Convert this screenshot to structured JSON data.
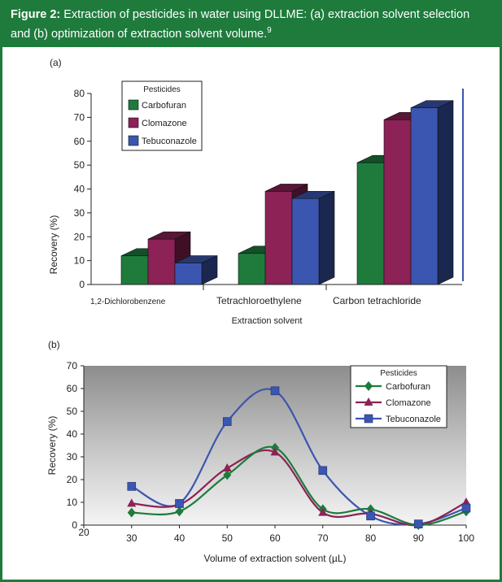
{
  "figure": {
    "label": "Figure 2:",
    "caption": "Extraction of pesticides in water using DLLME: (a) extraction solvent selection and (b) optimization of extraction solvent volume.",
    "ref": "9"
  },
  "colors": {
    "carbofuran": "#1e7b3c",
    "clomazone": "#8c2255",
    "tebuconazole": "#3a56b0",
    "frame": "#1e7b3c"
  },
  "chart_data": [
    {
      "panel": "(a)",
      "type": "bar",
      "title": "",
      "xlabel": "Extraction solvent",
      "ylabel": "Recovery (%)",
      "ylim": [
        0,
        80
      ],
      "yticks": [
        0,
        10,
        20,
        30,
        40,
        50,
        60,
        70,
        80
      ],
      "categories": [
        "1,2-Dichlorobenzene",
        "Tetrachloroethylene",
        "Carbon tetrachloride"
      ],
      "legend_title": "Pesticides",
      "legend_position": "top-left",
      "series": [
        {
          "name": "Carbofuran",
          "values": [
            12,
            13,
            51
          ]
        },
        {
          "name": "Clomazone",
          "values": [
            19,
            39,
            69
          ]
        },
        {
          "name": "Tebuconazole",
          "values": [
            9,
            36,
            74
          ]
        }
      ]
    },
    {
      "panel": "(b)",
      "type": "line",
      "title": "",
      "xlabel": "Volume of extraction solvent (µL)",
      "ylabel": "Recovery (%)",
      "xlim": [
        20,
        100
      ],
      "ylim": [
        0,
        70
      ],
      "xticks": [
        20,
        30,
        40,
        50,
        60,
        70,
        80,
        90,
        100
      ],
      "yticks": [
        0,
        10,
        20,
        30,
        40,
        50,
        60,
        70
      ],
      "x": [
        30,
        40,
        50,
        60,
        70,
        80,
        90,
        100
      ],
      "legend_title": "Pesticides",
      "legend_position": "top-right",
      "series": [
        {
          "name": "Carbofuran",
          "marker": "diamond",
          "values": [
            5.5,
            6,
            22,
            34,
            7,
            7,
            0,
            6
          ]
        },
        {
          "name": "Clomazone",
          "marker": "triangle",
          "values": [
            9.5,
            9,
            25,
            32,
            5.5,
            5,
            0,
            10
          ]
        },
        {
          "name": "Tebuconazole",
          "marker": "square",
          "values": [
            17,
            9.5,
            45.5,
            59,
            24,
            4,
            0.5,
            7.5
          ]
        }
      ]
    }
  ]
}
